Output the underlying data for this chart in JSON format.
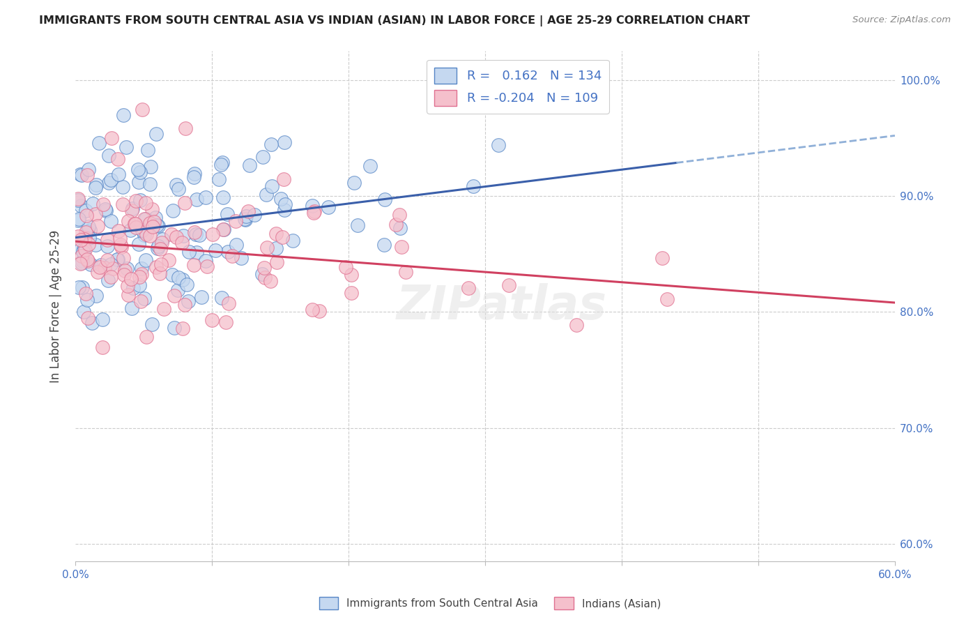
{
  "title": "IMMIGRANTS FROM SOUTH CENTRAL ASIA VS INDIAN (ASIAN) IN LABOR FORCE | AGE 25-29 CORRELATION CHART",
  "source": "Source: ZipAtlas.com",
  "ylabel": "In Labor Force | Age 25-29",
  "xlim": [
    0.0,
    0.6
  ],
  "ylim": [
    0.585,
    1.025
  ],
  "ytick_values": [
    0.6,
    0.7,
    0.8,
    0.9,
    1.0
  ],
  "xtick_values": [
    0.0,
    0.1,
    0.2,
    0.3,
    0.4,
    0.5,
    0.6
  ],
  "blue_R": 0.162,
  "blue_N": 134,
  "pink_R": -0.204,
  "pink_N": 109,
  "blue_fill": "#c5d8f0",
  "pink_fill": "#f5c0cc",
  "blue_edge": "#5585c5",
  "pink_edge": "#e07090",
  "blue_line_color": "#3a5faa",
  "pink_line_color": "#d04060",
  "blue_dash_color": "#90b0d8",
  "background_color": "#ffffff",
  "grid_color": "#cccccc",
  "title_color": "#222222",
  "tick_color": "#4472c4",
  "ylabel_color": "#444444",
  "legend_text_color": "#4472c4",
  "bottom_legend_color": "#444444"
}
